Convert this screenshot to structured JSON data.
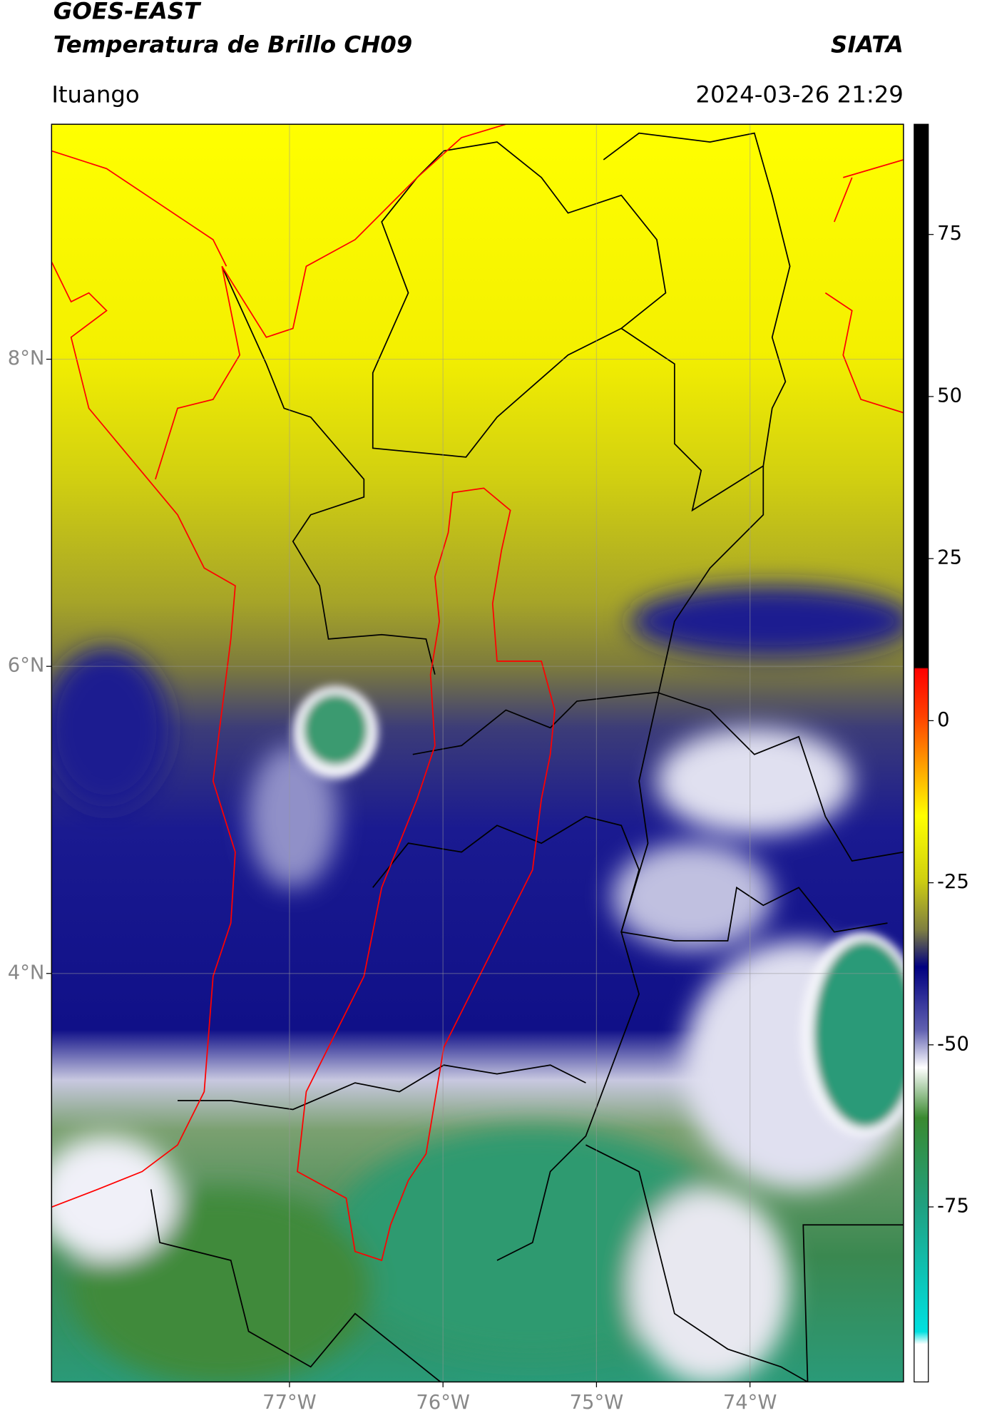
{
  "header": {
    "title_line1": "GOES-EAST",
    "title_line2": "Temperatura de Brillo CH09",
    "brand": "SIATA",
    "location": "Ituango",
    "datetime": "2024-03-26 21:29"
  },
  "map": {
    "type": "map",
    "xlim": [
      -78.55,
      -73.0
    ],
    "ylim": [
      1.34,
      9.53
    ],
    "grid": true,
    "xticks": [
      {
        "value": -77,
        "label": "77°W"
      },
      {
        "value": -76,
        "label": "76°W"
      },
      {
        "value": -75,
        "label": "75°W"
      },
      {
        "value": -74,
        "label": "74°W"
      }
    ],
    "yticks": [
      {
        "value": 8,
        "label": "8°N"
      },
      {
        "value": 6,
        "label": "6°N"
      },
      {
        "value": 4,
        "label": "4°N"
      }
    ]
  },
  "colorbar": {
    "lim": [
      -102,
      92
    ],
    "ticks": [
      75,
      50,
      25,
      0,
      -25,
      -50,
      -75
    ]
  }
}
